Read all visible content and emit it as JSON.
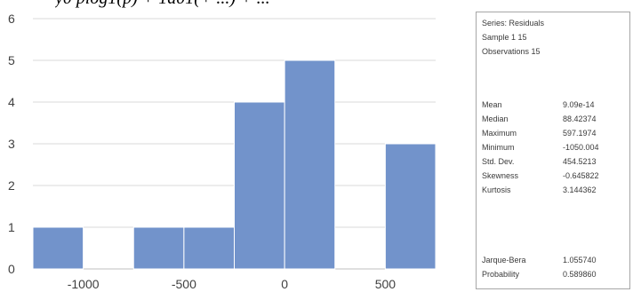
{
  "caption_text": "y0 plog1(p) + 1d01(+ ...) + ...",
  "chart_data": {
    "type": "bar",
    "subtype": "histogram",
    "bin_edges": [
      -1250,
      -1000,
      -750,
      -500,
      -250,
      0,
      250,
      500,
      750
    ],
    "values": [
      1,
      0,
      1,
      1,
      4,
      5,
      0,
      3
    ],
    "ylim": [
      0,
      6
    ],
    "xlim": [
      -1250,
      750
    ],
    "yticks": [
      "0",
      "1",
      "2",
      "3",
      "4",
      "5",
      "6"
    ],
    "xticks": [
      "-1000",
      "-500",
      "0",
      "500"
    ],
    "xtick_values": [
      -1000,
      -500,
      0,
      500
    ],
    "bar_color": "#7293cb",
    "grid": "horizontal"
  },
  "stats": {
    "series": "Series: Residuals",
    "sample": "Sample 1 15",
    "observations": "Observations 15",
    "rows": [
      {
        "label": "Mean",
        "value": "9.09e-14"
      },
      {
        "label": "Median",
        "value": "88.42374"
      },
      {
        "label": "Maximum",
        "value": "597.1974"
      },
      {
        "label": "Minimum",
        "value": "-1050.004"
      },
      {
        "label": "Std. Dev.",
        "value": "454.5213"
      },
      {
        "label": "Skewness",
        "value": "-0.645822"
      },
      {
        "label": "Kurtosis",
        "value": "3.144362"
      }
    ],
    "jb_rows": [
      {
        "label": "Jarque-Bera",
        "value": "1.055740"
      },
      {
        "label": "Probability",
        "value": "0.589860"
      }
    ]
  }
}
